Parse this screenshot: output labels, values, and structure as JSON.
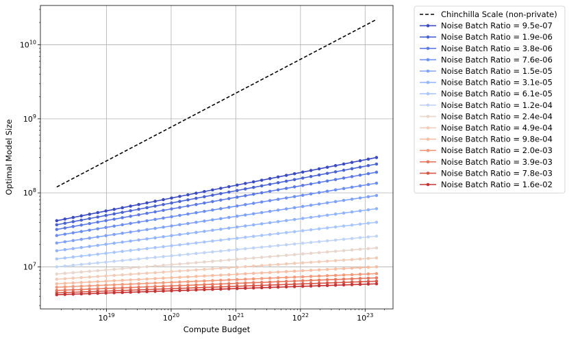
{
  "chart_data": {
    "type": "line",
    "title": "",
    "xlabel": "Compute Budget",
    "ylabel": "Optimal Model Size",
    "xscale": "log",
    "yscale": "log",
    "xlim": [
      9.5e+17,
      2.7e+23
    ],
    "ylim": [
      2700000.0,
      34000000000.0
    ],
    "grid": true,
    "legend_position": "outside-top-right",
    "x_tick_labels": [
      {
        "value": 1e+19,
        "base": "10",
        "exp": "19"
      },
      {
        "value": 1e+20,
        "base": "10",
        "exp": "20"
      },
      {
        "value": 1e+21,
        "base": "10",
        "exp": "21"
      },
      {
        "value": 1e+22,
        "base": "10",
        "exp": "22"
      },
      {
        "value": 1e+23,
        "base": "10",
        "exp": "23"
      }
    ],
    "y_tick_labels": [
      {
        "value": 10000000.0,
        "base": "10",
        "exp": "7"
      },
      {
        "value": 100000000.0,
        "base": "10",
        "exp": "8"
      },
      {
        "value": 1000000000.0,
        "base": "10",
        "exp": "9"
      },
      {
        "value": 10000000000.0,
        "base": "10",
        "exp": "10"
      }
    ],
    "x_range": [
      1.7e+18,
      1.5e+23
    ],
    "num_points": 40,
    "reference": {
      "name": "Chinchilla Scale (non-private)",
      "color": "#000000",
      "style": "dashed",
      "start": [
        1.7e+18,
        120000000.0
      ],
      "end": [
        1.5e+23,
        22000000000.0
      ]
    },
    "series": [
      {
        "name": "Noise Batch Ratio = 9.5e-07",
        "color": "#3b4cc0",
        "start": 42000000.0,
        "end": 300000000.0
      },
      {
        "name": "Noise Batch Ratio = 1.9e-06",
        "color": "#4a63d3",
        "start": 37000000.0,
        "end": 245000000.0
      },
      {
        "name": "Noise Batch Ratio = 3.8e-06",
        "color": "#5b7ae5",
        "start": 32000000.0,
        "end": 190000000.0
      },
      {
        "name": "Noise Batch Ratio = 7.6e-06",
        "color": "#6d8ff1",
        "start": 26500000.0,
        "end": 135000000.0
      },
      {
        "name": "Noise Batch Ratio = 1.5e-05",
        "color": "#80a3fa",
        "start": 21000000.0,
        "end": 92000000.0
      },
      {
        "name": "Noise Batch Ratio = 3.1e-05",
        "color": "#93b5fe",
        "start": 16500000.0,
        "end": 61000000.0
      },
      {
        "name": "Noise Batch Ratio = 6.1e-05",
        "color": "#aac7fd",
        "start": 12800000.0,
        "end": 40000000.0
      },
      {
        "name": "Noise Batch Ratio = 1.2e-04",
        "color": "#c0d4f5",
        "start": 10000000.0,
        "end": 26000000.0
      },
      {
        "name": "Noise Batch Ratio = 2.4e-04",
        "color": "#e8d6cc",
        "start": 8000000.0,
        "end": 18000000.0
      },
      {
        "name": "Noise Batch Ratio = 4.9e-04",
        "color": "#f2cbb7",
        "start": 6800000.0,
        "end": 13200000.0
      },
      {
        "name": "Noise Batch Ratio = 9.8e-04",
        "color": "#f6bda2",
        "start": 5900000.0,
        "end": 10000000.0
      },
      {
        "name": "Noise Batch Ratio = 2.0e-03",
        "color": "#f4987a",
        "start": 5300000.0,
        "end": 8100000.0
      },
      {
        "name": "Noise Batch Ratio = 3.9e-03",
        "color": "#e8765c",
        "start": 4800000.0,
        "end": 7100000.0
      },
      {
        "name": "Noise Batch Ratio = 7.8e-03",
        "color": "#d75445",
        "start": 4450000.0,
        "end": 6400000.0
      },
      {
        "name": "Noise Batch Ratio = 1.6e-02",
        "color": "#c53334",
        "start": 4200000.0,
        "end": 5900000.0
      }
    ]
  }
}
